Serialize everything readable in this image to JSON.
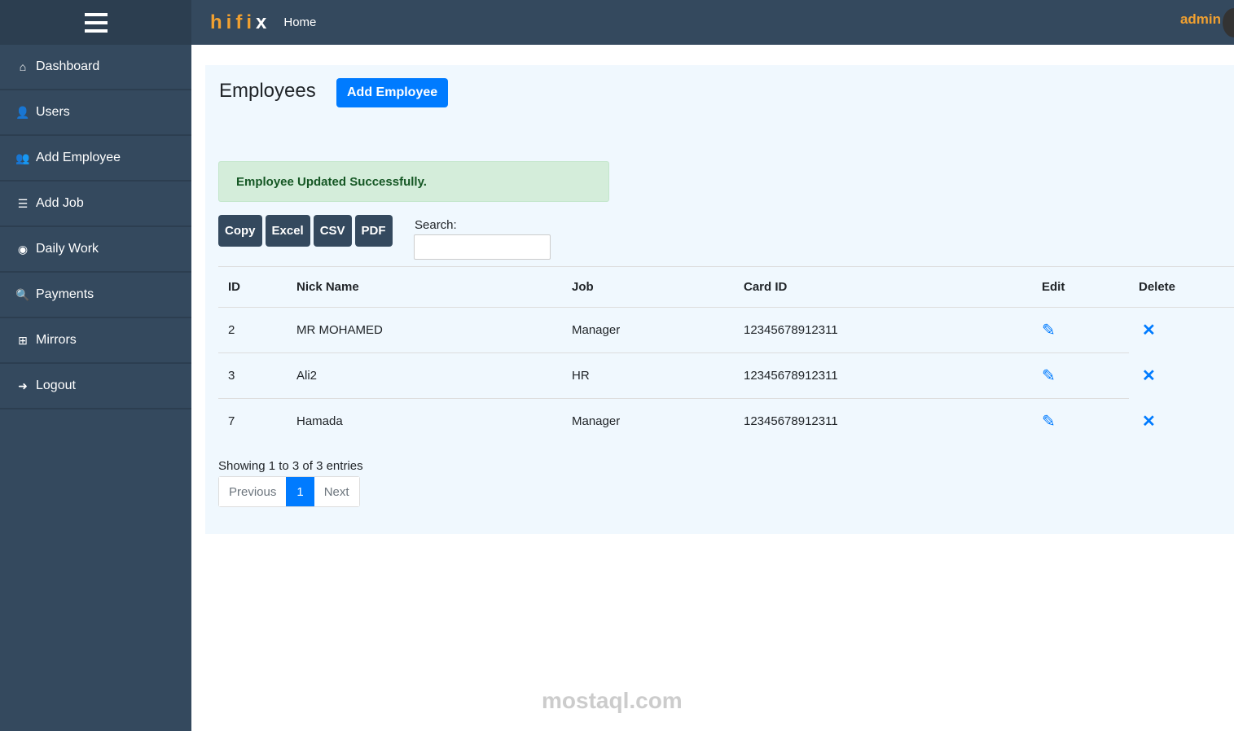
{
  "sidebar": {
    "items": [
      {
        "icon": "home-icon",
        "glyph": "⌂",
        "label": "Dashboard"
      },
      {
        "icon": "user-icon",
        "glyph": "👤",
        "label": "Users"
      },
      {
        "icon": "users-icon",
        "glyph": "👥",
        "label": "Add Employee"
      },
      {
        "icon": "coins-icon",
        "glyph": "☰",
        "label": "Add Job"
      },
      {
        "icon": "eye-icon",
        "glyph": "◉",
        "label": "Daily Work"
      },
      {
        "icon": "search-dollar-icon",
        "glyph": "🔍",
        "label": "Payments"
      },
      {
        "icon": "sitemap-icon",
        "glyph": "⊞",
        "label": "Mirrors"
      },
      {
        "icon": "logout-icon",
        "glyph": "➜",
        "label": "Logout"
      }
    ]
  },
  "header": {
    "logo": "hifi",
    "logo_end": "x",
    "home": "Home",
    "user": "admin"
  },
  "page": {
    "title": "Employees",
    "add_button": "Add Employee",
    "alert": "Employee Updated Successfully.",
    "exports": [
      "Copy",
      "Excel",
      "CSV",
      "PDF"
    ],
    "search_label": "Search:",
    "search_value": ""
  },
  "table": {
    "headers": [
      "ID",
      "Nick Name",
      "Job",
      "Card ID",
      "Edit",
      "Delete"
    ],
    "rows": [
      [
        "2",
        "MR MOHAMED",
        "Manager",
        "12345678912311"
      ],
      [
        "3",
        "Ali2",
        "HR",
        "12345678912311"
      ],
      [
        "7",
        "Hamada",
        "Manager",
        "12345678912311"
      ]
    ]
  },
  "footer": {
    "info": "Showing 1 to 3 of 3 entries",
    "previous": "Previous",
    "page": "1",
    "next": "Next"
  },
  "watermark": "mostaql.com",
  "colors": {
    "sidebar": "#34495e",
    "accent": "#007bff",
    "brand": "#f0a030",
    "alert_bg": "#d4edda"
  }
}
